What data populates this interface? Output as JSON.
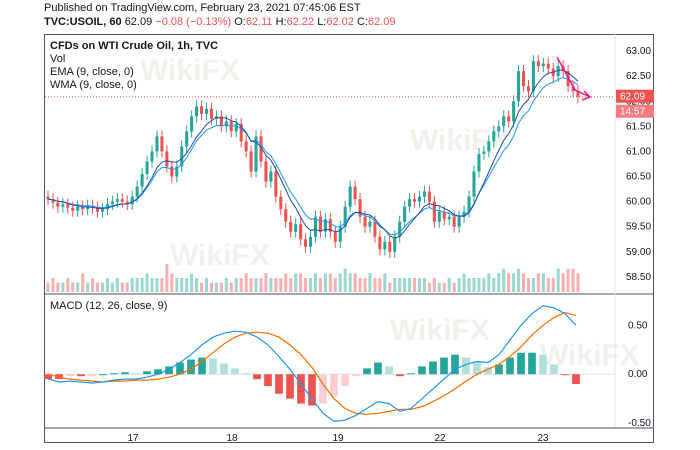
{
  "header": {
    "published": "Published on TradingView.com, February 23, 2021 07:45:06 EST",
    "symbol": "TVC:USOIL, 60",
    "last": "62.09",
    "change": "−0.08 (−0.13%)",
    "o_label": "O:",
    "o_value": "62.11",
    "h_label": "H:",
    "h_value": "62.22",
    "l_label": "L:",
    "l_value": "62.02",
    "c_label": "C:",
    "c_value": "62.09"
  },
  "legend": {
    "title": "CFDs on WTI Crude Oil, 1h, TVC",
    "vol": "Vol",
    "ema": "EMA (9, close, 0)",
    "wma": "WMA (9, close, 0)"
  },
  "macd_legend": "MACD (12, 26, close, 9)",
  "price_badge": "62.09",
  "time_badge": "14:57",
  "watermark": "WikiFX",
  "colors": {
    "up": "#26a69a",
    "down": "#ef5350",
    "ema": "#2196f3",
    "wma": "#1e4fa3",
    "macd": "#2196f3",
    "signal": "#ff6d00",
    "arrow": "#e91e8c",
    "axis": "#50535e"
  },
  "chart_data": [
    {
      "type": "candlestick",
      "title": "CFDs on WTI Crude Oil, 1h, TVC",
      "x_ticks": [
        "17",
        "18",
        "19",
        "22",
        "23"
      ],
      "y_ticks": [
        "63.00",
        "62.50",
        "62.00",
        "61.50",
        "61.00",
        "60.50",
        "60.00",
        "59.50",
        "59.00",
        "58.50"
      ],
      "ylim": [
        58.2,
        63.3
      ],
      "last_price": 62.09,
      "close": [
        60.05,
        59.98,
        59.9,
        59.95,
        59.88,
        59.82,
        59.9,
        59.85,
        59.92,
        59.88,
        59.8,
        59.85,
        59.95,
        60.0,
        60.05,
        60.0,
        59.95,
        60.1,
        60.3,
        60.55,
        60.8,
        61.0,
        61.3,
        61.0,
        60.7,
        60.5,
        60.7,
        61.1,
        61.4,
        61.7,
        61.9,
        61.75,
        61.85,
        61.65,
        61.7,
        61.5,
        61.6,
        61.4,
        61.55,
        61.2,
        61.0,
        60.6,
        61.3,
        60.8,
        60.4,
        60.6,
        60.1,
        59.85,
        59.6,
        59.4,
        59.55,
        59.25,
        59.1,
        59.3,
        59.7,
        59.4,
        59.65,
        59.4,
        59.2,
        59.5,
        59.9,
        60.3,
        60.05,
        59.7,
        59.5,
        59.6,
        59.3,
        59.05,
        59.2,
        59.0,
        59.3,
        59.6,
        59.9,
        60.05,
        60.0,
        60.1,
        60.2,
        60.0,
        59.6,
        59.8,
        59.65,
        59.7,
        59.5,
        59.7,
        59.8,
        60.1,
        60.6,
        60.95,
        61.0,
        61.2,
        61.4,
        61.5,
        61.7,
        61.6,
        62.0,
        62.6,
        62.3,
        62.2,
        62.8,
        62.7,
        62.75,
        62.65,
        62.5,
        62.7,
        62.6,
        62.3,
        62.2,
        62.09
      ],
      "volume": [
        2,
        3,
        2,
        2,
        3,
        2,
        2,
        4,
        2,
        3,
        2,
        2,
        3,
        2,
        3,
        2,
        2,
        3,
        3,
        3,
        4,
        3,
        3,
        3,
        6,
        4,
        3,
        3,
        3,
        4,
        3,
        2,
        3,
        2,
        2,
        2,
        3,
        2,
        3,
        3,
        4,
        3,
        3,
        3,
        4,
        3,
        3,
        3,
        4,
        3,
        4,
        4,
        3,
        3,
        4,
        3,
        4,
        4,
        3,
        4,
        5,
        4,
        4,
        3,
        3,
        4,
        3,
        3,
        4,
        2,
        3,
        3,
        3,
        3,
        3,
        3,
        3,
        2,
        3,
        2,
        2,
        3,
        2,
        3,
        4,
        3,
        3,
        3,
        3,
        4,
        3,
        4,
        5,
        4,
        4,
        5,
        4,
        3,
        3,
        4,
        4,
        3,
        3,
        5,
        4,
        5,
        5,
        4
      ]
    },
    {
      "type": "macd",
      "title": "MACD (12, 26, close, 9)",
      "y_ticks": [
        "0.50",
        "0.00",
        "-0.50"
      ],
      "ylim": [
        -0.55,
        0.8
      ],
      "macd": [
        -0.05,
        -0.08,
        -0.07,
        -0.08,
        -0.09,
        -0.08,
        -0.06,
        -0.05,
        -0.05,
        -0.03,
        0.0,
        0.05,
        0.12,
        0.2,
        0.3,
        0.38,
        0.42,
        0.44,
        0.43,
        0.38,
        0.3,
        0.18,
        0.05,
        -0.1,
        -0.25,
        -0.4,
        -0.48,
        -0.47,
        -0.42,
        -0.35,
        -0.28,
        -0.3,
        -0.38,
        -0.35,
        -0.25,
        -0.15,
        -0.05,
        0.05,
        0.1,
        0.13,
        0.12,
        0.2,
        0.35,
        0.5,
        0.62,
        0.7,
        0.68,
        0.62,
        0.5
      ],
      "signal": [
        0.0,
        -0.03,
        -0.05,
        -0.06,
        -0.07,
        -0.08,
        -0.07,
        -0.07,
        -0.06,
        -0.06,
        -0.05,
        -0.03,
        0.0,
        0.05,
        0.13,
        0.22,
        0.31,
        0.38,
        0.42,
        0.43,
        0.42,
        0.38,
        0.3,
        0.2,
        0.07,
        -0.1,
        -0.25,
        -0.35,
        -0.4,
        -0.41,
        -0.4,
        -0.38,
        -0.36,
        -0.36,
        -0.33,
        -0.28,
        -0.22,
        -0.15,
        -0.07,
        0.0,
        0.05,
        0.1,
        0.18,
        0.28,
        0.4,
        0.5,
        0.58,
        0.63,
        0.6
      ]
    }
  ]
}
